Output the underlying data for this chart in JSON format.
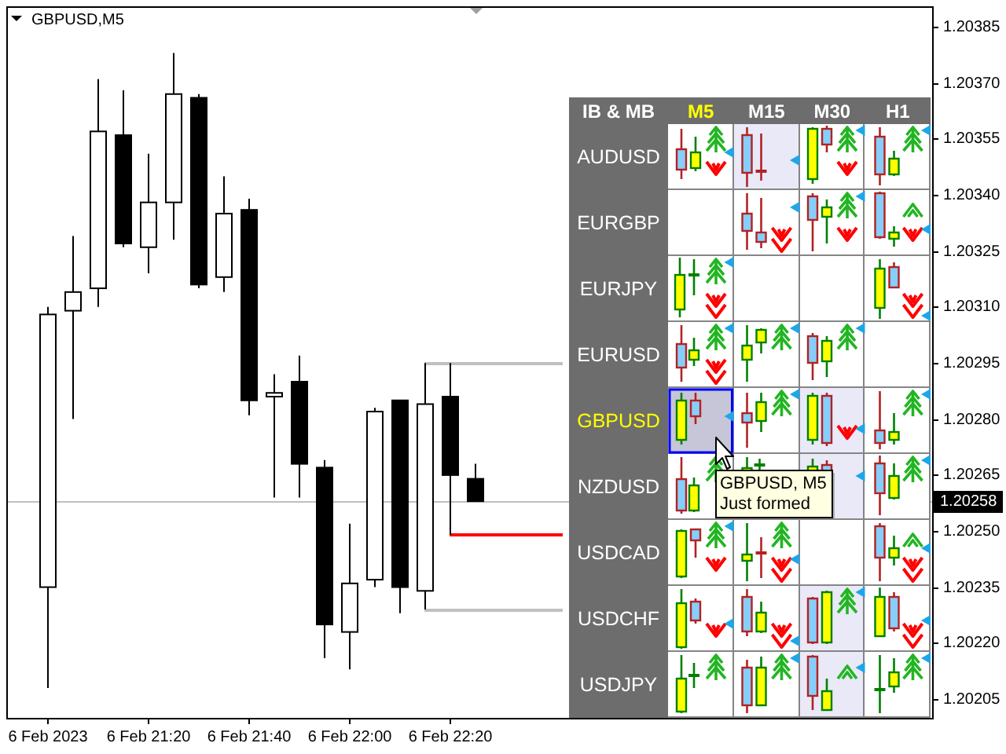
{
  "chart_data": [
    {
      "type": "candlestick",
      "title": "GBPUSD,M5",
      "x": [
        "2023-02-06T21:00",
        "2023-02-06T21:05",
        "2023-02-06T21:10",
        "2023-02-06T21:15",
        "2023-02-06T21:20",
        "2023-02-06T21:25",
        "2023-02-06T21:30",
        "2023-02-06T21:35",
        "2023-02-06T21:40",
        "2023-02-06T21:45",
        "2023-02-06T21:50",
        "2023-02-06T21:55",
        "2023-02-06T22:00",
        "2023-02-06T22:05",
        "2023-02-06T22:10",
        "2023-02-06T22:15",
        "2023-02-06T22:20",
        "2023-02-06T22:25"
      ],
      "ohlc": [
        [
          1.20235,
          1.2031,
          1.20208,
          1.20308
        ],
        [
          1.20309,
          1.20329,
          1.2028,
          1.20314
        ],
        [
          1.20315,
          1.20371,
          1.2031,
          1.20357
        ],
        [
          1.20356,
          1.20368,
          1.20326,
          1.20327
        ],
        [
          1.20326,
          1.20351,
          1.20319,
          1.20338
        ],
        [
          1.20338,
          1.20378,
          1.20328,
          1.20367
        ],
        [
          1.20366,
          1.20367,
          1.20315,
          1.20316
        ],
        [
          1.20318,
          1.20345,
          1.20314,
          1.20335
        ],
        [
          1.20336,
          1.20339,
          1.20281,
          1.20285
        ],
        [
          1.20286,
          1.20292,
          1.20259,
          1.20287
        ],
        [
          1.2029,
          1.20297,
          1.20259,
          1.20268
        ],
        [
          1.20267,
          1.20269,
          1.20216,
          1.20225
        ],
        [
          1.20223,
          1.20252,
          1.20213,
          1.20236
        ],
        [
          1.20237,
          1.20283,
          1.20235,
          1.20282
        ],
        [
          1.20285,
          1.20285,
          1.20228,
          1.20235
        ],
        [
          1.20234,
          1.20295,
          1.20229,
          1.20284
        ],
        [
          1.20286,
          1.20295,
          1.20249,
          1.20265
        ],
        [
          1.20264,
          1.20268,
          1.20258,
          1.20258
        ]
      ],
      "xlim": [
        "2023-02-06T20:52",
        "2023-02-06T23:56"
      ],
      "xticks": [
        {
          "value": "2023-02-06T21:00",
          "label": "6 Feb 2023"
        },
        {
          "value": "2023-02-06T21:20",
          "label": "6 Feb 21:20"
        },
        {
          "value": "2023-02-06T21:40",
          "label": "6 Feb 21:40"
        },
        {
          "value": "2023-02-06T22:00",
          "label": "6 Feb 22:00"
        },
        {
          "value": "2023-02-06T22:20",
          "label": "6 Feb 22:20"
        }
      ],
      "ylim": [
        1.202,
        1.203905
      ],
      "yticks": [
        1.20205,
        {
          "value": 1.2022,
          "label": "1.20220"
        },
        1.20235,
        {
          "value": 1.2025,
          "label": "1.20250"
        },
        1.20265,
        {
          "value": 1.2028,
          "label": "1.20280"
        },
        1.20295,
        {
          "value": 1.2031,
          "label": "1.20310"
        },
        1.20325,
        {
          "value": 1.2034,
          "label": "1.20340"
        },
        1.20355,
        {
          "value": 1.2037,
          "label": "1.20370"
        },
        1.20385
      ],
      "ref_lines": [
        {
          "axis": "y",
          "value": 1.20258,
          "label": "1.20258",
          "color": "#c0c0c0"
        },
        {
          "axis": "y",
          "value": 1.20295,
          "color": "#c0c0c0"
        },
        {
          "axis": "y",
          "value": 1.20249,
          "color": "#ff0000"
        },
        {
          "axis": "y",
          "value": 1.20229,
          "color": "#c0c0c0"
        }
      ]
    },
    {
      "type": "other",
      "title": "IB & MB",
      "categories": [
        "M5",
        "M15",
        "M30",
        "H1"
      ],
      "y_categories": [
        "AUDUSD",
        "EURGBP",
        "EURJPY",
        "EURUSD",
        "GBPUSD",
        "NZDUSD",
        "USDCAD",
        "USDCHF",
        "USDJPY"
      ],
      "annotations": [
        "GBPUSD, M5",
        "Just formed"
      ]
    }
  ]
}
